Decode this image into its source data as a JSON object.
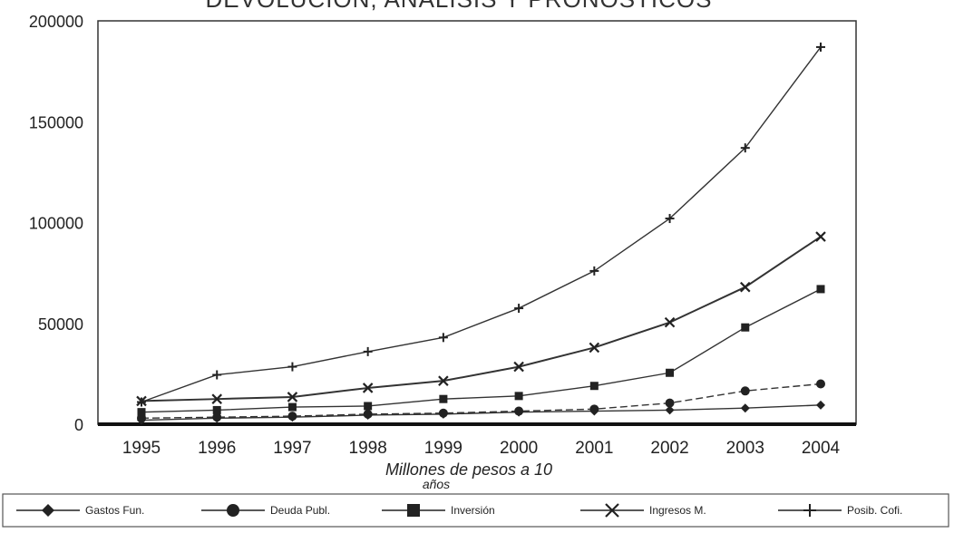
{
  "chart_data": {
    "type": "line",
    "title": "DEVOLUCIÓN, ANÁLISIS Y PRONÓSTICOS",
    "xlabel": "Millones de pesos a 10 años",
    "ylabel": "",
    "x": [
      "1995",
      "1996",
      "1997",
      "1998",
      "1999",
      "2000",
      "2001",
      "2002",
      "2003",
      "2004"
    ],
    "ylim": [
      0,
      200000
    ],
    "yticks": [
      "0",
      "50000",
      "100000",
      "150000",
      "200000"
    ],
    "grid": false,
    "legend_position": "bottom",
    "series": [
      {
        "name": "Gastos Fun.",
        "marker": "diamond",
        "values": [
          2000,
          3000,
          3500,
          4500,
          5000,
          6000,
          6500,
          7000,
          8000,
          9500
        ]
      },
      {
        "name": "Deuda Publ.",
        "marker": "circle",
        "values": [
          3000,
          3500,
          4000,
          5000,
          5500,
          6500,
          7500,
          10500,
          16500,
          20000
        ]
      },
      {
        "name": "Inversión",
        "marker": "square",
        "values": [
          6000,
          7000,
          8500,
          9000,
          12500,
          14000,
          19000,
          25500,
          48000,
          67000
        ]
      },
      {
        "name": "Ingresos M.",
        "marker": "x",
        "values": [
          11500,
          12500,
          13500,
          18000,
          21500,
          28500,
          38000,
          50500,
          68000,
          93000
        ]
      },
      {
        "name": "Posib. Cofi.",
        "marker": "plus",
        "values": [
          11000,
          24500,
          28500,
          36000,
          43000,
          57500,
          76000,
          102000,
          137000,
          187000
        ]
      }
    ]
  }
}
